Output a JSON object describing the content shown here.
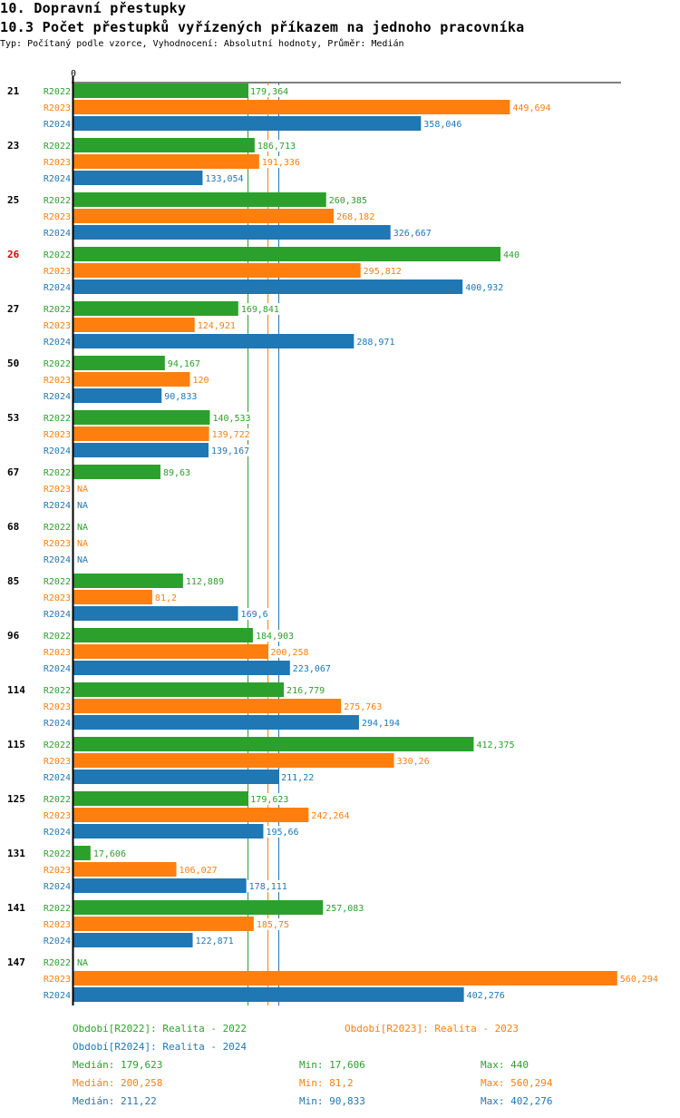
{
  "page": {
    "heading": "10. Dopravní přestupky",
    "title": "10.3 Počet přestupků vyřízených příkazem na jednoho pracovníka",
    "subtitle": "Typ: Počítaný podle vzorce, Vyhodnocení: Absolutní hodnoty, Průměr: Medián"
  },
  "colors": {
    "R2022": "#2ca02c",
    "R2023": "#ff7f0e",
    "R2024": "#1f77b4",
    "highlight": "#e00000",
    "axis": "#000000"
  },
  "chart_data": {
    "type": "bar",
    "orientation": "horizontal",
    "title": "10.3 Počet přestupků vyřízených příkazem na jednoho pracovníka",
    "xlabel": "",
    "ylabel": "",
    "axis_zero_label": "0",
    "xlim": [
      0,
      560.294
    ],
    "series_names": [
      "R2022",
      "R2023",
      "R2024"
    ],
    "categories": [
      "21",
      "23",
      "25",
      "26",
      "27",
      "50",
      "53",
      "67",
      "68",
      "85",
      "96",
      "114",
      "115",
      "125",
      "131",
      "141",
      "147"
    ],
    "highlighted_category": "26",
    "na_label": "NA",
    "series": [
      {
        "name": "R2022",
        "values": [
          179.364,
          186.713,
          260.385,
          440,
          169.841,
          94.167,
          140.533,
          89.63,
          null,
          112.889,
          184.903,
          216.779,
          412.375,
          179.623,
          17.606,
          257.083,
          null
        ],
        "labels": [
          "179,364",
          "186,713",
          "260,385",
          "440",
          "169,841",
          "94,167",
          "140,533",
          "89,63",
          "NA",
          "112,889",
          "184,903",
          "216,779",
          "412,375",
          "179,623",
          "17,606",
          "257,083",
          "NA"
        ]
      },
      {
        "name": "R2023",
        "values": [
          449.694,
          191.336,
          268.182,
          295.812,
          124.921,
          120,
          139.722,
          null,
          null,
          81.2,
          200.258,
          275.763,
          330.26,
          242.264,
          106.027,
          185.75,
          560.294
        ],
        "labels": [
          "449,694",
          "191,336",
          "268,182",
          "295,812",
          "124,921",
          "120",
          "139,722",
          "NA",
          "NA",
          "81,2",
          "200,258",
          "275,763",
          "330,26",
          "242,264",
          "106,027",
          "185,75",
          "560,294"
        ]
      },
      {
        "name": "R2024",
        "values": [
          358.046,
          133.054,
          326.667,
          400.932,
          288.971,
          90.833,
          139.167,
          null,
          null,
          169.6,
          223.067,
          294.194,
          211.22,
          195.66,
          178.111,
          122.871,
          402.276
        ],
        "labels": [
          "358,046",
          "133,054",
          "326,667",
          "400,932",
          "288,971",
          "90,833",
          "139,167",
          "NA",
          "NA",
          "169,6",
          "223,067",
          "294,194",
          "211,22",
          "195,66",
          "178,111",
          "122,871",
          "402,276"
        ]
      }
    ],
    "medians": {
      "R2022": 179.623,
      "R2023": 200.258,
      "R2024": 211.22
    },
    "legend": [
      {
        "series": "R2022",
        "text": "Období[R2022]: Realita - 2022"
      },
      {
        "series": "R2023",
        "text": "Období[R2023]: Realita - 2023"
      },
      {
        "series": "R2024",
        "text": "Období[R2024]: Realita - 2024"
      }
    ],
    "stats": [
      {
        "series": "R2022",
        "median": "Medián: 179,623",
        "min": "Min: 17,606",
        "max": "Max: 440"
      },
      {
        "series": "R2023",
        "median": "Medián: 200,258",
        "min": "Min: 81,2",
        "max": "Max: 560,294"
      },
      {
        "series": "R2024",
        "median": "Medián: 211,22",
        "min": "Min: 90,833",
        "max": "Max: 402,276"
      }
    ],
    "legend_placement": "bottom"
  }
}
